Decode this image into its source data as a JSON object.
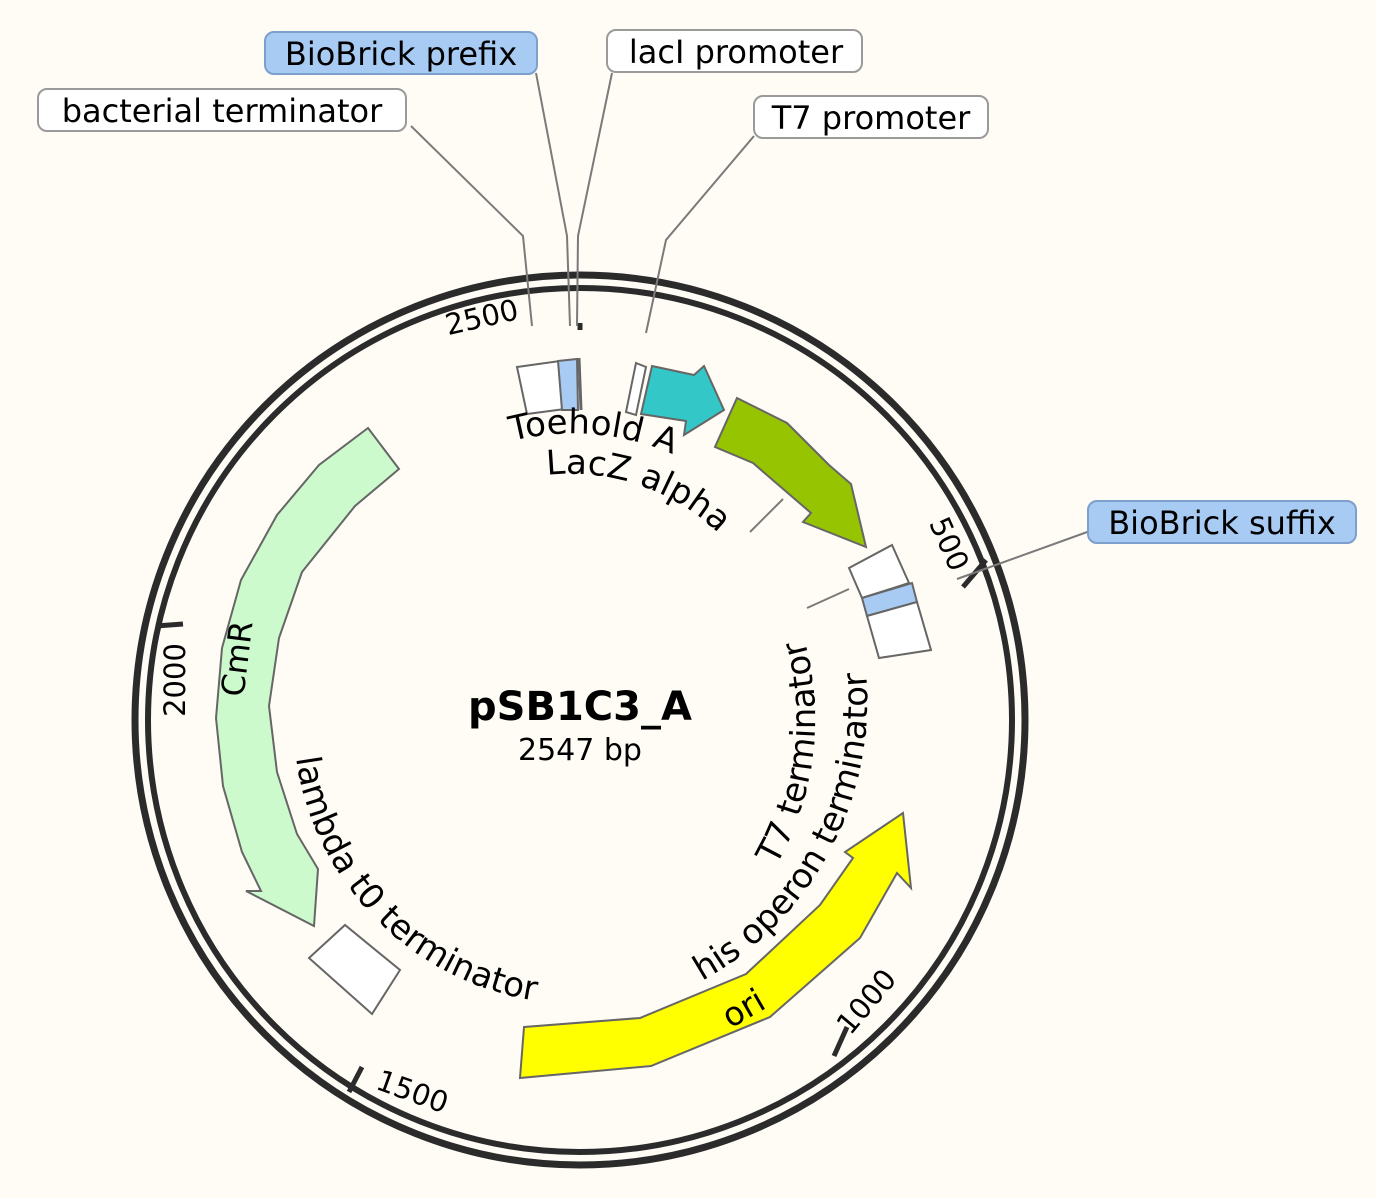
{
  "plasmid": {
    "name": "pSB1C3_A",
    "length": "2547 bp"
  },
  "ticks": [
    {
      "label": "2500"
    },
    {
      "label": "500"
    },
    {
      "label": "2000"
    },
    {
      "label": "1000"
    },
    {
      "label": "1500"
    }
  ],
  "callouts": {
    "bacterial_terminator": "bacterial terminator",
    "biobrick_prefix": "BioBrick prefix",
    "laci_promoter": "lacI promoter",
    "t7_promoter": "T7 promoter",
    "biobrick_suffix": "BioBrick suffix"
  },
  "feature_labels": {
    "toehold_a": "Toehold A",
    "lacz_alpha": "LacZ alpha",
    "cmr": "CmR",
    "lambda_t0": "lambda t0 terminator",
    "t7_terminator": "T7 terminator",
    "his_operon": "his operon terminator",
    "ori": "ori"
  },
  "colors": {
    "background": "#fffcf5",
    "backbone": "#2b2b2b",
    "biobrick_site": "#a8cbf4",
    "toehold": "#33c7c7",
    "lacz": "#96c400",
    "cmr": "#ccfacc",
    "ori": "#ffff00",
    "terminator": "#ffffff"
  }
}
